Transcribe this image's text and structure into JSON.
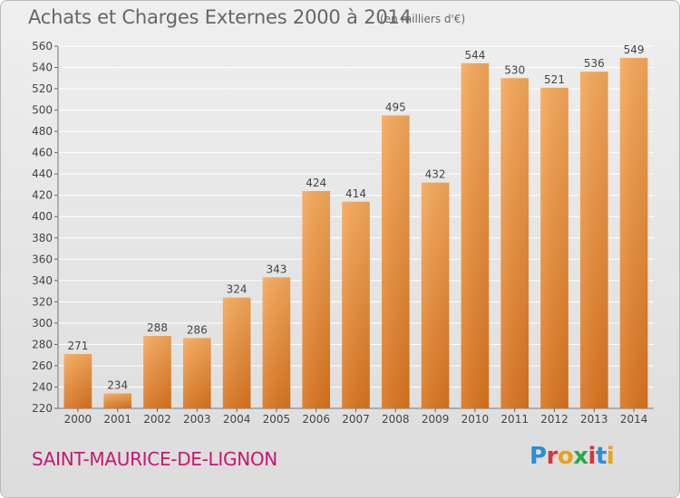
{
  "header": {
    "title": "Achats et Charges Externes 2000 à 2014",
    "unit": "(en milliers d'€)"
  },
  "footer": {
    "commune": "SAINT-MAURICE-DE-LIGNON",
    "brand": "Proxiti",
    "brand_colors": [
      "#2a8fd6",
      "#d9343a",
      "#e8a215",
      "#2aa84a",
      "#d9343a",
      "#2a8fd6",
      "#e8a215"
    ]
  },
  "colors": {
    "bar_top": "#f6a85a",
    "bar_bottom": "#d9741f",
    "text": "#444444",
    "commune": "#c7186f"
  },
  "chart_data": {
    "type": "bar",
    "categories": [
      "2000",
      "2001",
      "2002",
      "2003",
      "2004",
      "2005",
      "2006",
      "2007",
      "2008",
      "2009",
      "2010",
      "2011",
      "2012",
      "2013",
      "2014"
    ],
    "values": [
      271,
      234,
      288,
      286,
      324,
      343,
      424,
      414,
      495,
      432,
      544,
      530,
      521,
      536,
      549
    ],
    "ylim": [
      220,
      560
    ],
    "yticks": [
      220,
      240,
      260,
      280,
      300,
      320,
      340,
      360,
      380,
      400,
      420,
      440,
      460,
      480,
      500,
      520,
      540,
      560
    ],
    "grid": true,
    "legend": "none"
  }
}
